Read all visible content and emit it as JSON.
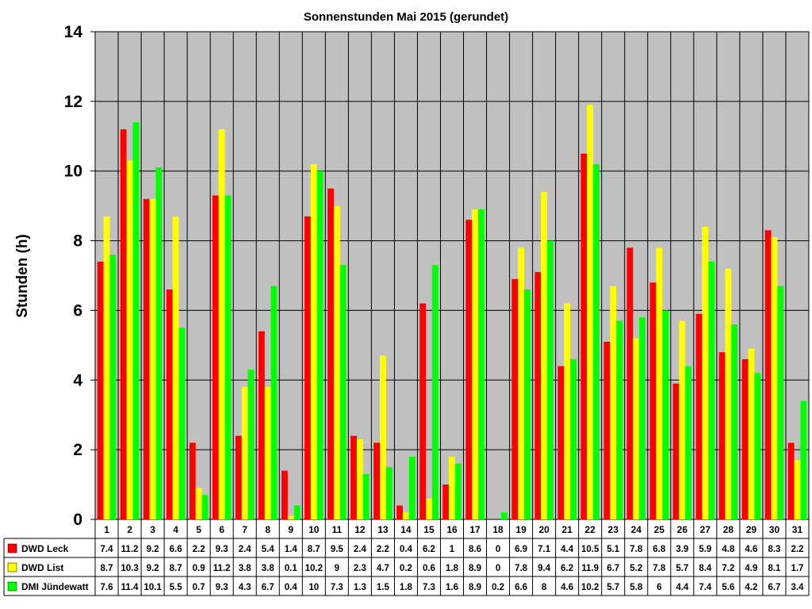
{
  "chart_data": {
    "type": "bar",
    "title": "Sonnenstunden Mai 2015 (gerundet)",
    "ylabel": "Stunden (h)",
    "xlabel": "",
    "ylim": [
      0,
      14
    ],
    "yticks": [
      0,
      2,
      4,
      6,
      8,
      10,
      12,
      14
    ],
    "grid": true,
    "legend_placement": "table-left",
    "plot_background": "#c0c0c0",
    "categories": [
      "1",
      "2",
      "3",
      "4",
      "5",
      "6",
      "7",
      "8",
      "9",
      "10",
      "11",
      "12",
      "13",
      "14",
      "15",
      "16",
      "17",
      "18",
      "19",
      "20",
      "21",
      "22",
      "23",
      "24",
      "25",
      "26",
      "27",
      "28",
      "29",
      "30",
      "31"
    ],
    "series": [
      {
        "name": "DWD Leck",
        "color": "#ff0000",
        "values": [
          7.4,
          11.2,
          9.2,
          6.6,
          2.2,
          9.3,
          2.4,
          5.4,
          1.4,
          8.7,
          9.5,
          2.4,
          2.2,
          0.4,
          6.2,
          1,
          8.6,
          0,
          6.9,
          7.1,
          4.4,
          10.5,
          5.1,
          7.8,
          6.8,
          3.9,
          5.9,
          4.8,
          4.6,
          8.3,
          2.2
        ]
      },
      {
        "name": "DWD List",
        "color": "#ffff00",
        "values": [
          8.7,
          10.3,
          9.2,
          8.7,
          0.9,
          11.2,
          3.8,
          3.8,
          0.1,
          10.2,
          9,
          2.3,
          4.7,
          0.2,
          0.6,
          1.8,
          8.9,
          0,
          7.8,
          9.4,
          6.2,
          11.9,
          6.7,
          5.2,
          7.8,
          5.7,
          8.4,
          7.2,
          4.9,
          8.1,
          1.7
        ]
      },
      {
        "name": "DMI Jündewatt",
        "color": "#00ff00",
        "values": [
          7.6,
          11.4,
          10.1,
          5.5,
          0.7,
          9.3,
          4.3,
          6.7,
          0.4,
          10,
          7.3,
          1.3,
          1.5,
          1.8,
          7.3,
          1.6,
          8.9,
          0.2,
          6.6,
          8,
          4.6,
          10.2,
          5.7,
          5.8,
          6,
          4.4,
          7.4,
          5.6,
          4.2,
          6.7,
          3.4
        ]
      }
    ]
  }
}
